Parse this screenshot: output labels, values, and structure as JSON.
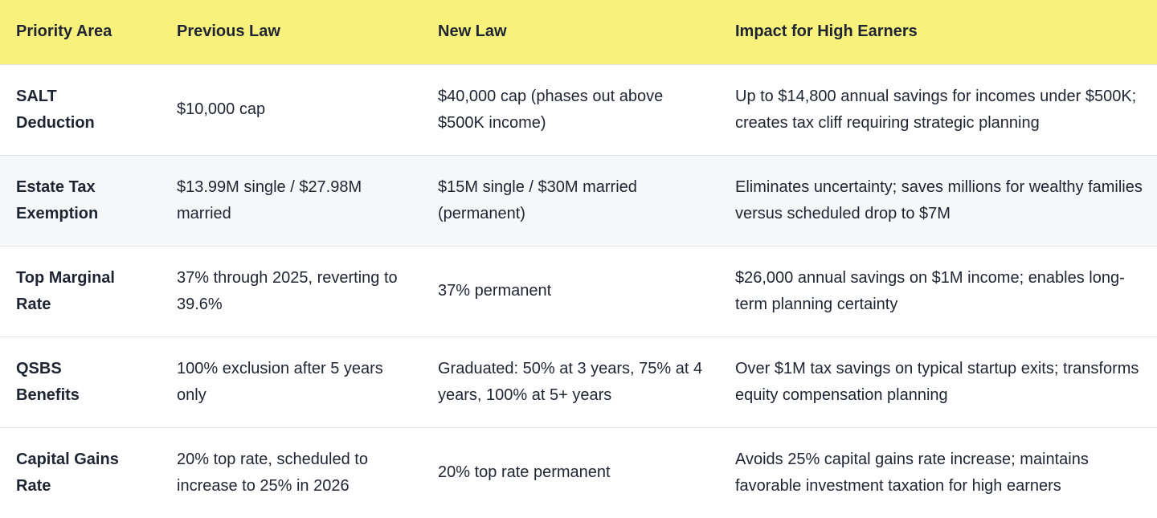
{
  "table": {
    "header": [
      "Priority Area",
      "Previous Law",
      "New Law",
      "Impact for High Earners"
    ],
    "rows": [
      [
        "SALT Deduction",
        "$10,000 cap",
        "$40,000 cap (phases out above $500K income)",
        "Up to $14,800 annual savings for incomes under $500K; creates tax cliff requiring strategic planning"
      ],
      [
        "Estate Tax Exemption",
        "$13.99M single / $27.98M married",
        "$15M single / $30M married (permanent)",
        "Eliminates uncertainty; saves millions for wealthy families versus scheduled drop to $7M"
      ],
      [
        "Top Marginal Rate",
        "37% through 2025, reverting to 39.6%",
        "37% permanent",
        "$26,000 annual savings on $1M income; enables long-term planning certainty"
      ],
      [
        "QSBS Benefits",
        "100% exclusion after 5 years only",
        "Graduated: 50% at 3 years, 75% at 4 years, 100% at 5+ years",
        "Over $1M tax savings on typical startup exits; transforms equity compensation planning"
      ],
      [
        "Capital Gains Rate",
        "20% top rate, scheduled to increase to 25% in 2026",
        "20% top rate permanent",
        "Avoids 25% capital gains rate increase; maintains favorable investment taxation for high earners"
      ]
    ]
  }
}
